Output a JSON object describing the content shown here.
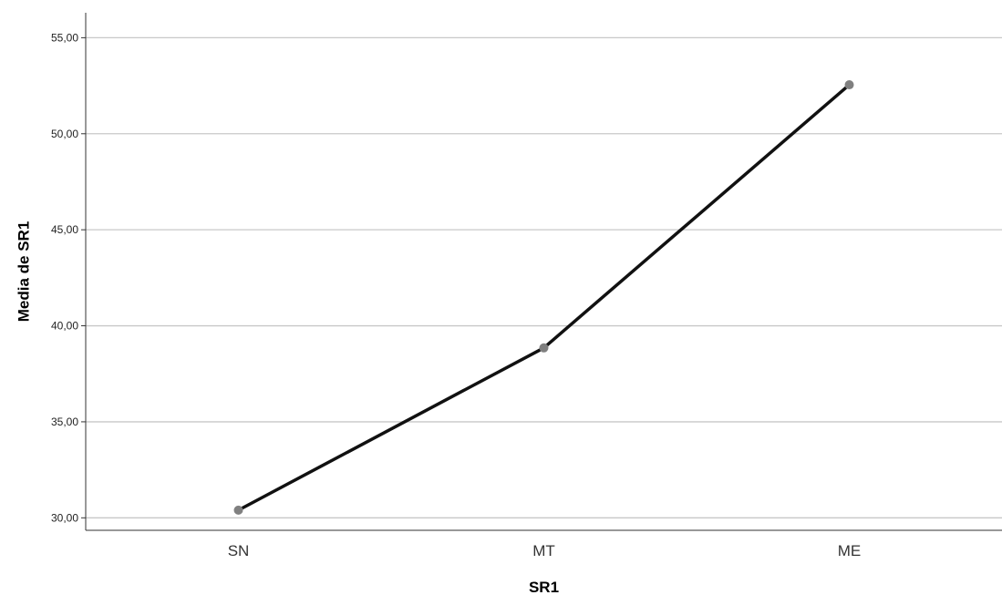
{
  "chart_data": {
    "type": "line",
    "title": "",
    "xlabel": "SR1",
    "ylabel": "Media de SR1",
    "categories": [
      "SN",
      "MT",
      "ME"
    ],
    "series": [
      {
        "values": [
          30.4,
          38.85,
          52.55
        ]
      }
    ],
    "ylim": [
      29.35,
      56.3
    ],
    "yticks": [
      30,
      35,
      40,
      45,
      50,
      55
    ],
    "ytick_labels": [
      "30,00",
      "35,00",
      "40,00",
      "45,00",
      "50,00",
      "55,00"
    ],
    "grid": "horizontal",
    "legend": "none",
    "colors": {
      "line": "#111111",
      "marker": "#808080",
      "grid": "#c8c8c8",
      "axis": "#333333"
    }
  }
}
